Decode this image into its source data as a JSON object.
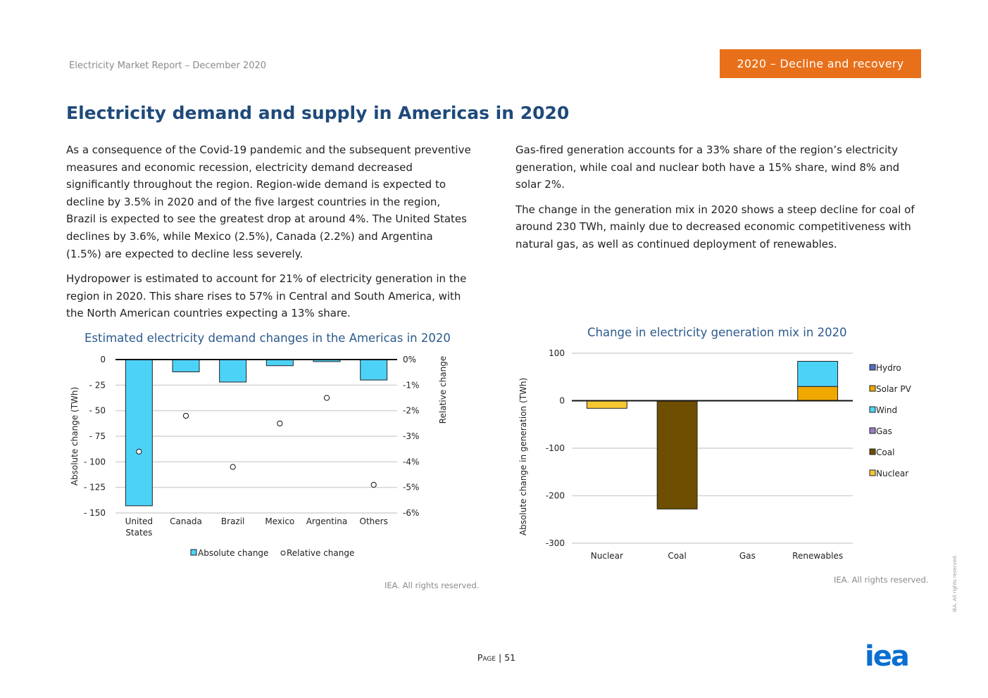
{
  "header": {
    "report_title": "Electricity Market Report – December 2020",
    "chapter": "2020 – Decline and recovery"
  },
  "page_title": "Electricity demand and supply in Americas in 2020",
  "body": {
    "left": [
      "As a consequence of the Covid-19 pandemic and the subsequent preventive measures and economic recession, electricity demand decreased significantly throughout the region. Region-wide demand is expected to decline by 3.5% in 2020 and of the five largest countries in the region, Brazil is expected to see the greatest drop at around 4%. The United States declines by 3.6%, while Mexico (2.5%), Canada (2.2%) and Argentina (1.5%) are expected to decline less severely.",
      "Hydropower is estimated to account for 21% of electricity generation in the region in 2020. This share rises to 57% in Central and South America, with the North American countries expecting a 13% share."
    ],
    "right": [
      "Gas-fired generation accounts for a 33% share of the region’s electricity generation, while coal and nuclear both have a 15% share, wind 8% and solar 2%.",
      "The change in the generation mix in 2020 shows a steep decline for coal of around 230 TWh, mainly due to decreased economic competitiveness with natural gas, as well as continued deployment of renewables."
    ]
  },
  "chart_data": [
    {
      "type": "bar",
      "title": "Estimated electricity demand changes in the Americas in 2020",
      "categories": [
        "United States",
        "Canada",
        "Brazil",
        "Mexico",
        "Argentina",
        "Others"
      ],
      "category_lines": [
        [
          "United",
          "States"
        ],
        [
          "Canada"
        ],
        [
          "Brazil"
        ],
        [
          "Mexico"
        ],
        [
          "Argentina"
        ],
        [
          "Others"
        ]
      ],
      "series": [
        {
          "name": "Absolute change",
          "kind": "bar",
          "axis": "left",
          "color": "#4dd2f7",
          "values": [
            -143,
            -12,
            -22,
            -6,
            -2,
            -20
          ]
        },
        {
          "name": "Relative change",
          "kind": "marker",
          "axis": "right",
          "color": "#ffffff",
          "values": [
            -3.6,
            -2.2,
            -4.2,
            -2.5,
            -1.5,
            -4.9
          ]
        }
      ],
      "ylabel": "Absolute change (TWh)",
      "y2label": "Relative change",
      "ylim": [
        -150,
        0
      ],
      "y2lim": [
        -6,
        0
      ],
      "yticks": [
        "0",
        "- 25",
        "- 50",
        "- 75",
        "- 100",
        "- 125",
        "- 150"
      ],
      "y2ticks": [
        "0%",
        "-1%",
        "-2%",
        "-3%",
        "-4%",
        "-5%",
        "-6%"
      ],
      "grid": true,
      "legend": "bottom",
      "credit": "IEA. All rights reserved."
    },
    {
      "type": "bar",
      "stacked": true,
      "title": "Change in electricity generation mix in 2020",
      "categories": [
        "Nuclear",
        "Coal",
        "Gas",
        "Renewables"
      ],
      "series": [
        {
          "name": "Hydro",
          "color": "#4f6fc4",
          "values": [
            0,
            0,
            0,
            0
          ]
        },
        {
          "name": "Solar PV",
          "color": "#f0a800",
          "values": [
            0,
            0,
            0,
            30
          ]
        },
        {
          "name": "Wind",
          "color": "#4dd2f7",
          "values": [
            0,
            0,
            0,
            53
          ]
        },
        {
          "name": "Gas",
          "color": "#9a7ec8",
          "values": [
            0,
            0,
            0,
            0
          ]
        },
        {
          "name": "Coal",
          "color": "#6e4e00",
          "values": [
            0,
            -228,
            0,
            0
          ]
        },
        {
          "name": "Nuclear",
          "color": "#f7c832",
          "values": [
            -16,
            0,
            0,
            0
          ]
        }
      ],
      "ylabel": "Absolute change in generation (TWh)",
      "ylim": [
        -300,
        100
      ],
      "yticks": [
        "100",
        "0",
        "-100",
        "-200",
        "-300"
      ],
      "grid": true,
      "legend": "right",
      "credit": "IEA. All rights reserved."
    }
  ],
  "footer": {
    "page_prefix": "Page",
    "page_number": "51",
    "side_note": "IEA. All rights reserved.",
    "logo_text": "iea"
  }
}
